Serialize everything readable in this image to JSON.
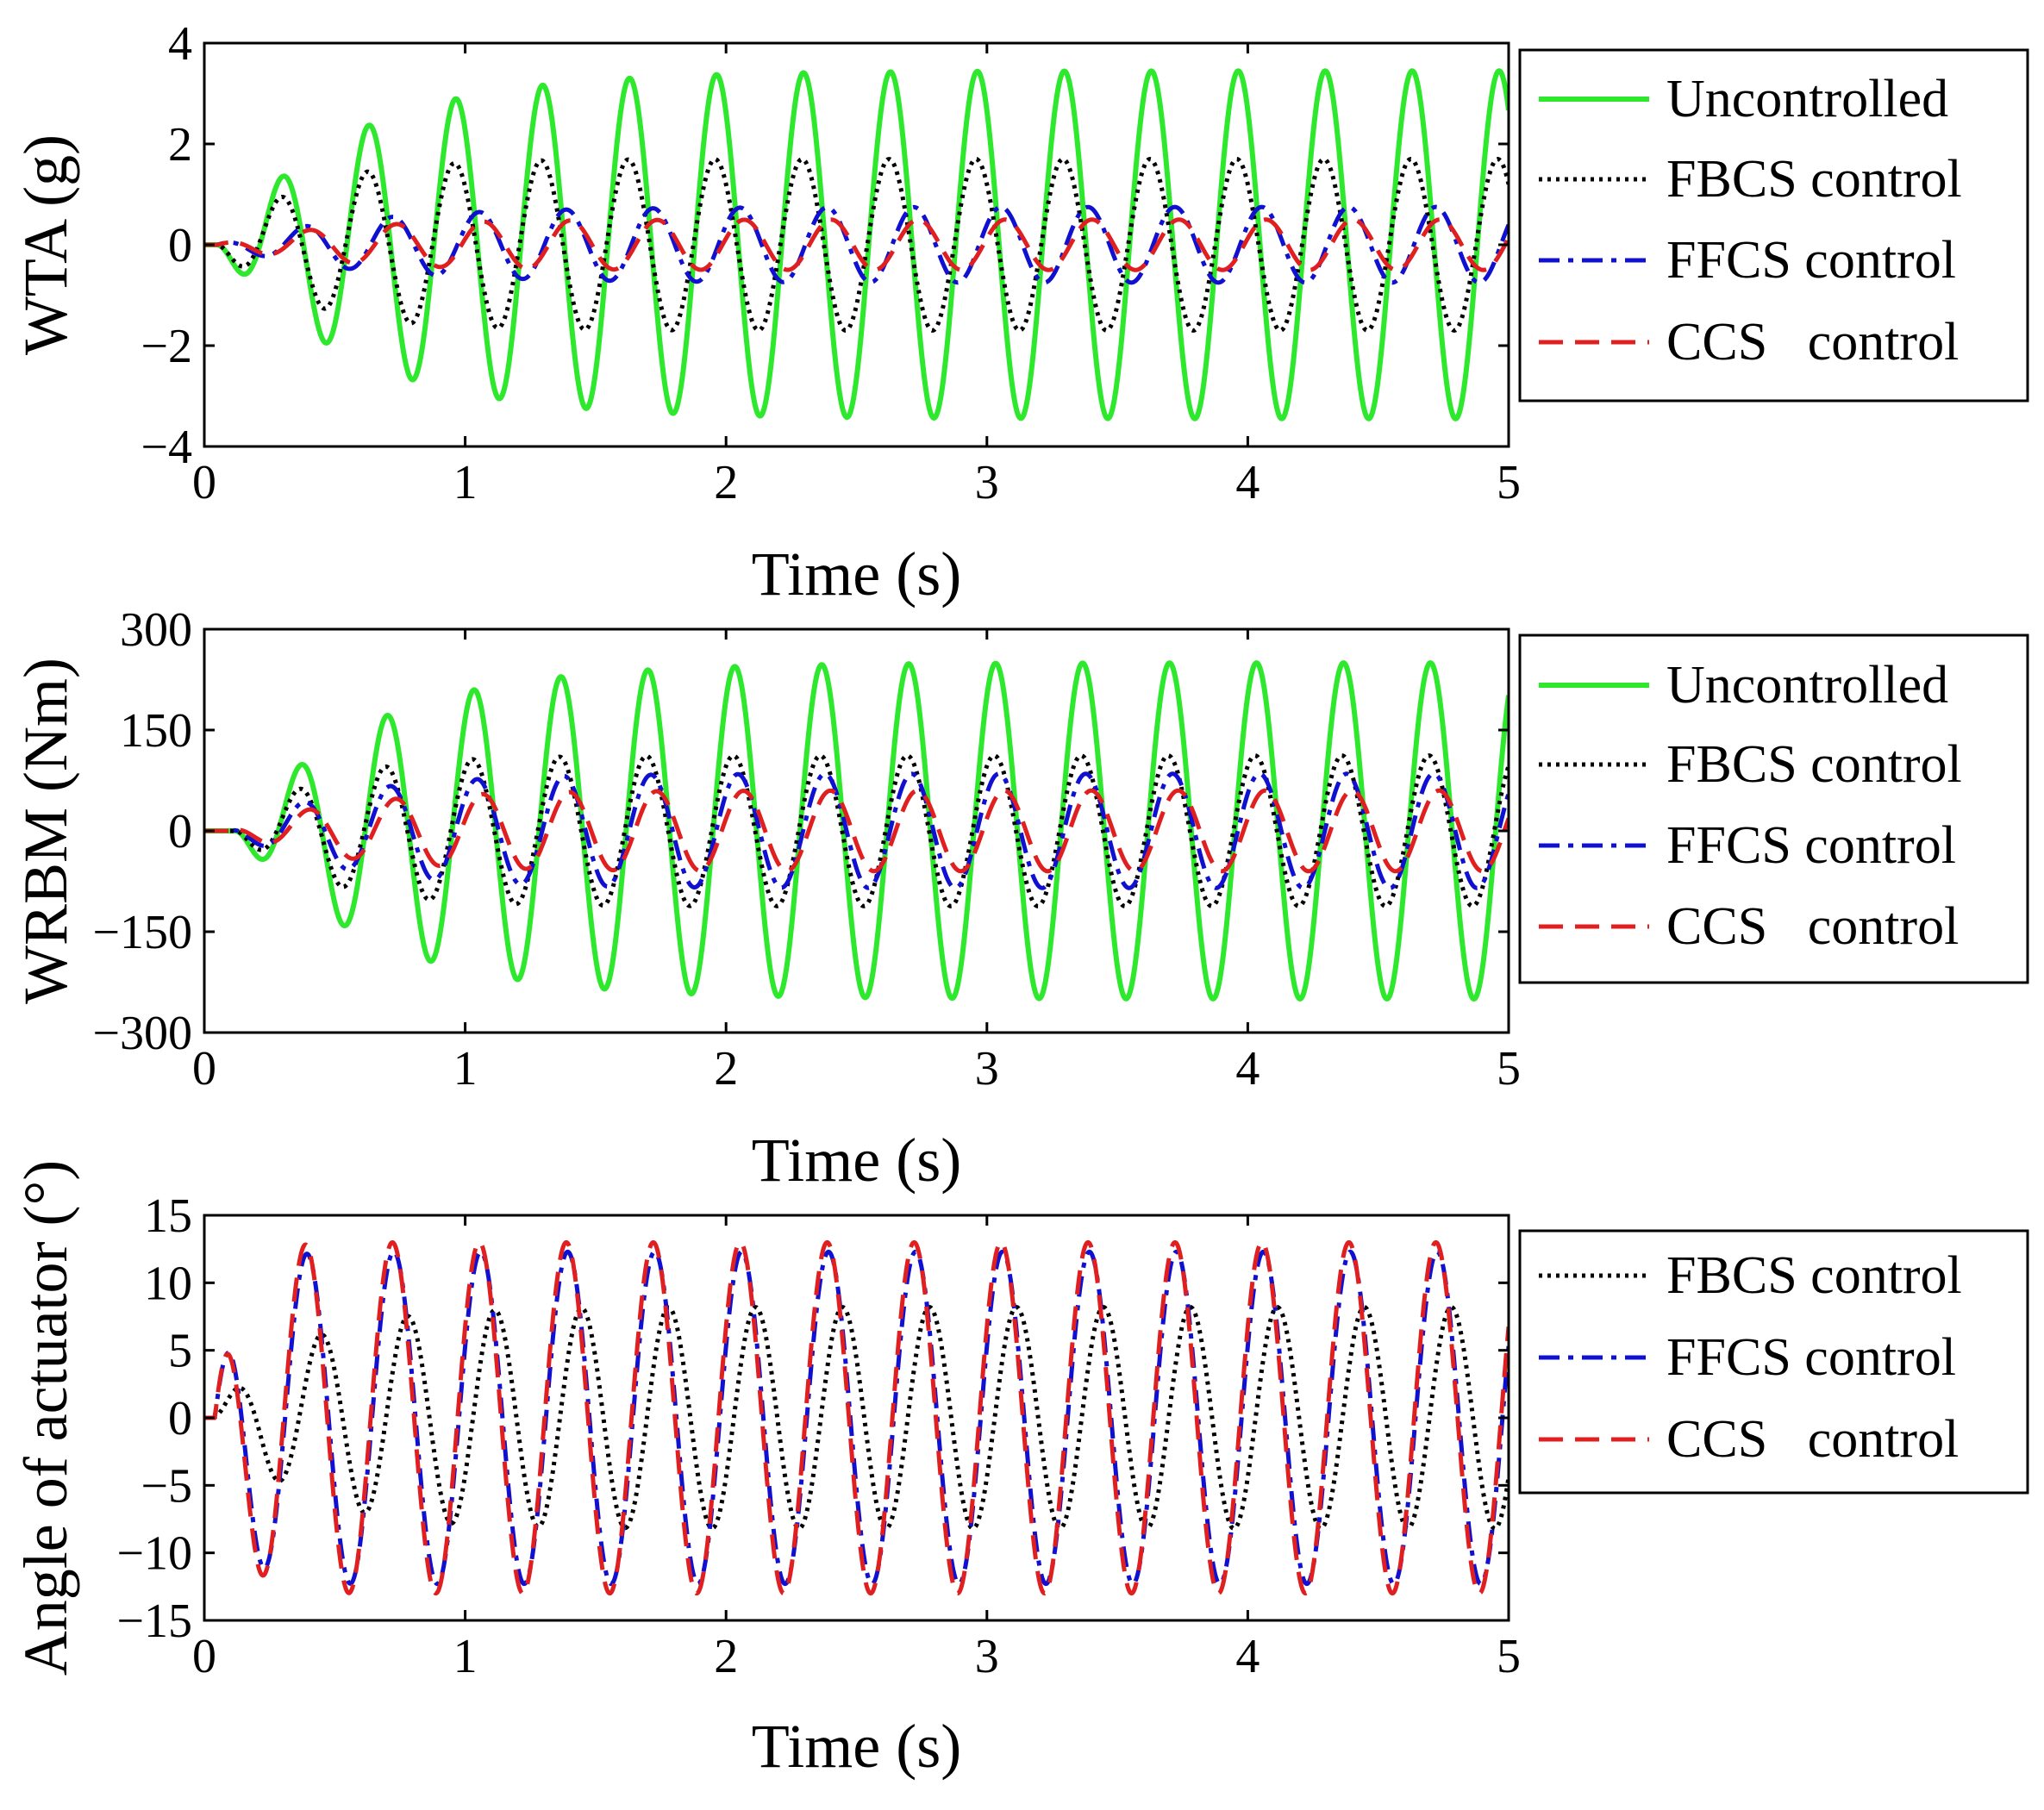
{
  "chart_data": [
    {
      "type": "line",
      "id": "wta",
      "xlabel": "Time (s)",
      "ylabel": "WTA (g)",
      "xlim": [
        0,
        5
      ],
      "ylim": [
        -4,
        4
      ],
      "xticks": [
        0,
        1,
        2,
        3,
        4,
        5
      ],
      "xtick_labels": [
        "0",
        "1",
        "2",
        "3",
        "4",
        "5"
      ],
      "yticks": [
        -4,
        -2,
        0,
        2,
        4
      ],
      "ytick_labels": [
        "−4",
        "−2",
        "0",
        "2",
        "4"
      ],
      "legend_position": "outside-right",
      "series": [
        {
          "name": "Uncontrolled",
          "color": "#2ee82e",
          "dash": "solid",
          "amplitude": 3.45,
          "frequency_hz": 3.0,
          "phase": 3.2,
          "rise_time_s": 0.5,
          "delay_s": 0.05
        },
        {
          "name": "FBCS control",
          "color": "#000000",
          "dash": "dotted",
          "amplitude": 1.7,
          "frequency_hz": 3.0,
          "phase": 3.3,
          "rise_time_s": 0.3,
          "delay_s": 0.05
        },
        {
          "name": "FFCS control",
          "color": "#1010d0",
          "dash": "dashdot",
          "amplitude": 0.75,
          "frequency_hz": 3.0,
          "phase": 1.5,
          "rise_time_s": 0.5,
          "delay_s": 0.05
        },
        {
          "name": "CCS   control",
          "color": "#e02020",
          "dash": "dashed",
          "amplitude": 0.5,
          "frequency_hz": 3.0,
          "phase": 1.2,
          "rise_time_s": 0.4,
          "delay_s": 0.05
        }
      ]
    },
    {
      "type": "line",
      "id": "wrbm",
      "xlabel": "Time (s)",
      "ylabel": "WRBM (Nm)",
      "xlim": [
        0,
        5
      ],
      "ylim": [
        -300,
        300
      ],
      "xticks": [
        0,
        1,
        2,
        3,
        4,
        5
      ],
      "xtick_labels": [
        "0",
        "1",
        "2",
        "3",
        "4",
        "5"
      ],
      "yticks": [
        -300,
        -150,
        0,
        150,
        300
      ],
      "ytick_labels": [
        "−300",
        "−150",
        "0",
        "150",
        "300"
      ],
      "legend_position": "outside-right",
      "series": [
        {
          "name": "Uncontrolled",
          "color": "#2ee82e",
          "dash": "solid",
          "amplitude": 250,
          "frequency_hz": 3.0,
          "phase": 3.2,
          "rise_time_s": 0.5,
          "delay_s": 0.12
        },
        {
          "name": "FBCS control",
          "color": "#000000",
          "dash": "dotted",
          "amplitude": 112,
          "frequency_hz": 3.0,
          "phase": 3.3,
          "rise_time_s": 0.3,
          "delay_s": 0.12
        },
        {
          "name": "FFCS control",
          "color": "#1010d0",
          "dash": "dashdot",
          "amplitude": 85,
          "frequency_hz": 3.0,
          "phase": 2.6,
          "rise_time_s": 0.4,
          "delay_s": 0.1
        },
        {
          "name": "CCS   control",
          "color": "#e02020",
          "dash": "dashed",
          "amplitude": 60,
          "frequency_hz": 3.0,
          "phase": 2.2,
          "rise_time_s": 0.4,
          "delay_s": 0.1
        }
      ]
    },
    {
      "type": "line",
      "id": "angle",
      "xlabel": "Time (s)",
      "ylabel": "Angle of actuator (°)",
      "xlim": [
        0,
        5
      ],
      "ylim": [
        -15,
        15
      ],
      "xticks": [
        0,
        1,
        2,
        3,
        4,
        5
      ],
      "xtick_labels": [
        "0",
        "1",
        "2",
        "3",
        "4",
        "5"
      ],
      "yticks": [
        -15,
        -10,
        -5,
        0,
        5,
        10,
        15
      ],
      "ytick_labels": [
        "−15",
        "−10",
        "−5",
        "0",
        "5",
        "10",
        "15"
      ],
      "legend_position": "outside-right",
      "series": [
        {
          "name": "FBCS control",
          "color": "#000000",
          "dash": "dotted",
          "amplitude": 8.2,
          "frequency_hz": 3.0,
          "phase": 0.0,
          "rise_time_s": 0.3,
          "delay_s": 0.03
        },
        {
          "name": "FFCS control",
          "color": "#1010d0",
          "dash": "dashdot",
          "amplitude": 12.3,
          "frequency_hz": 3.0,
          "phase": 1.2,
          "rise_time_s": 0.08,
          "delay_s": 0.04
        },
        {
          "name": "CCS   control",
          "color": "#e02020",
          "dash": "dashed",
          "amplitude": 13.0,
          "frequency_hz": 3.0,
          "phase": 1.3,
          "rise_time_s": 0.08,
          "delay_s": 0.04
        }
      ]
    }
  ]
}
